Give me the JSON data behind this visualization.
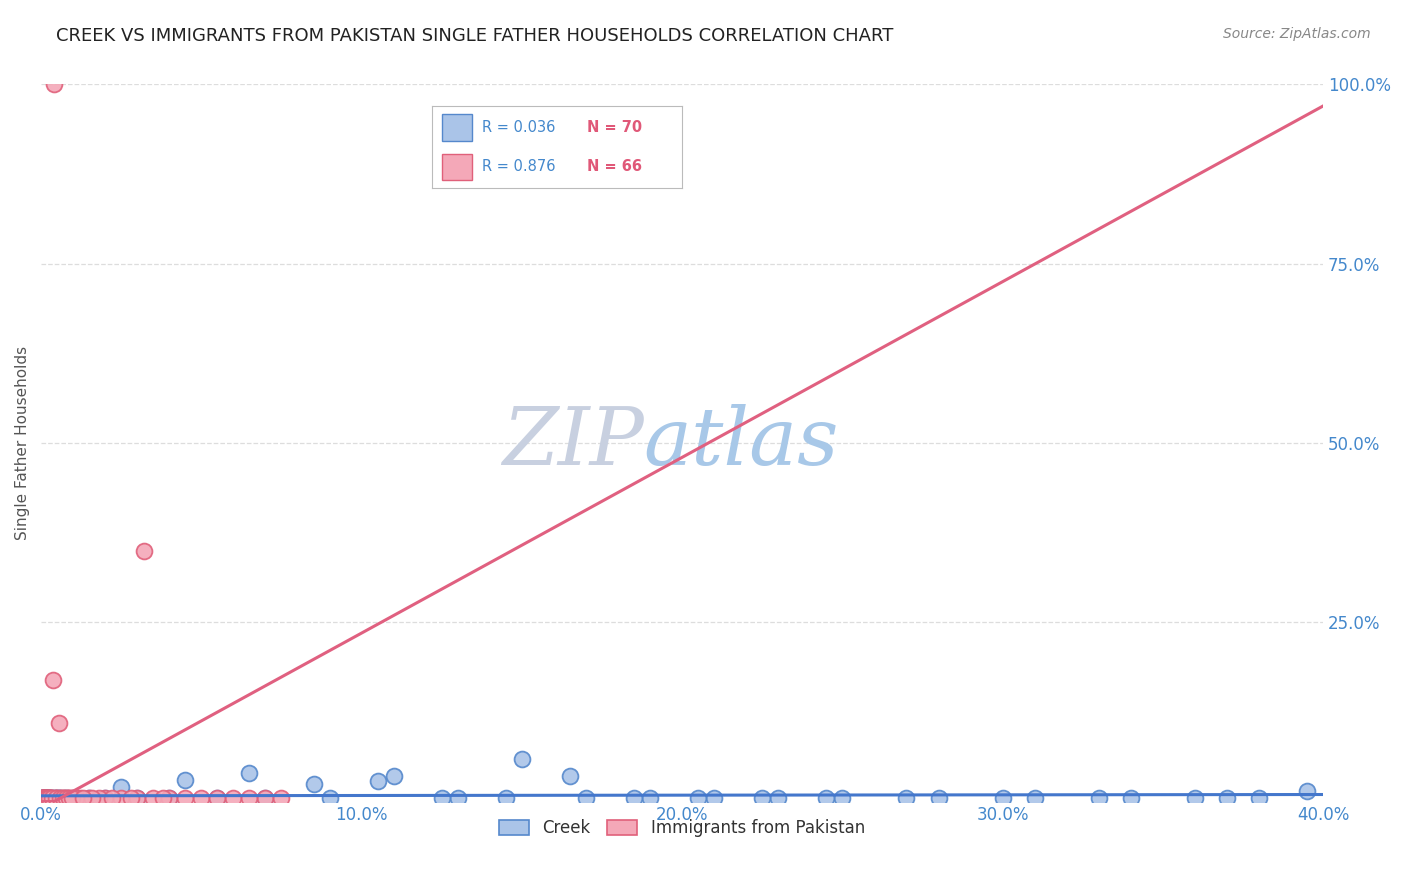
{
  "title": "CREEK VS IMMIGRANTS FROM PAKISTAN SINGLE FATHER HOUSEHOLDS CORRELATION CHART",
  "source": "Source: ZipAtlas.com",
  "ylabel": "Single Father Households",
  "xlabel_vals": [
    0.0,
    10.0,
    20.0,
    30.0,
    40.0
  ],
  "ylabel_right_vals": [
    25.0,
    50.0,
    75.0,
    100.0
  ],
  "creek_R": 0.036,
  "creek_N": 70,
  "pakistan_R": 0.876,
  "pakistan_N": 66,
  "creek_color": "#aac4e8",
  "creek_edge_color": "#5588cc",
  "pakistan_color": "#f4a8b8",
  "pakistan_edge_color": "#e0607a",
  "creek_line_color": "#4477cc",
  "pakistan_line_color": "#e06080",
  "background_color": "#ffffff",
  "grid_color": "#dddddd",
  "right_axis_color": "#4488cc",
  "title_fontsize": 13,
  "source_fontsize": 10,
  "creek_x": [
    0.02,
    0.03,
    0.04,
    0.05,
    0.06,
    0.07,
    0.08,
    0.09,
    0.1,
    0.11,
    0.12,
    0.13,
    0.14,
    0.15,
    0.16,
    0.17,
    0.18,
    0.19,
    0.2,
    0.22,
    0.24,
    0.26,
    0.28,
    0.3,
    0.35,
    0.4,
    0.5,
    0.6,
    0.7,
    0.8,
    1.0,
    1.5,
    2.0,
    3.0,
    4.0,
    5.5,
    7.0,
    9.0,
    11.0,
    13.0,
    15.0,
    17.0,
    19.0,
    21.0,
    23.0,
    25.0,
    27.0,
    30.0,
    33.0,
    36.0,
    38.0,
    39.5,
    2.5,
    4.5,
    6.5,
    8.5,
    10.5,
    12.5,
    14.5,
    16.5,
    18.5,
    20.5,
    22.5,
    24.5,
    28.0,
    31.0,
    34.0,
    37.0,
    0.45,
    0.55
  ],
  "creek_y": [
    0.5,
    0.5,
    0.5,
    0.5,
    0.5,
    0.5,
    0.5,
    0.5,
    0.5,
    0.5,
    0.5,
    0.5,
    0.5,
    0.5,
    0.5,
    0.5,
    0.5,
    0.5,
    0.5,
    0.5,
    0.5,
    0.5,
    0.5,
    0.5,
    0.5,
    0.5,
    0.5,
    0.5,
    0.5,
    0.5,
    0.5,
    0.5,
    0.5,
    0.5,
    0.5,
    0.5,
    0.5,
    0.5,
    3.5,
    0.5,
    6.0,
    0.5,
    0.5,
    0.5,
    0.5,
    0.5,
    0.5,
    0.5,
    0.5,
    0.5,
    0.5,
    1.5,
    2.0,
    3.0,
    4.0,
    2.5,
    2.8,
    0.5,
    0.5,
    3.5,
    0.5,
    0.5,
    0.5,
    0.5,
    0.5,
    0.5,
    0.5,
    0.5,
    0.5,
    0.5
  ],
  "pakistan_x": [
    0.02,
    0.03,
    0.04,
    0.05,
    0.06,
    0.07,
    0.08,
    0.09,
    0.1,
    0.12,
    0.14,
    0.16,
    0.18,
    0.2,
    0.25,
    0.3,
    0.35,
    0.4,
    0.5,
    0.6,
    0.7,
    0.8,
    0.9,
    1.0,
    1.2,
    1.5,
    2.0,
    2.5,
    3.0,
    3.5,
    4.0,
    5.0,
    6.0,
    7.0,
    3.2,
    0.38,
    0.55,
    0.45,
    1.8,
    2.2,
    4.5,
    6.5,
    0.28,
    0.32,
    0.22,
    0.15,
    0.62,
    0.72,
    0.85,
    1.1,
    1.6,
    2.8,
    3.8,
    5.5,
    7.5,
    0.42,
    0.18,
    0.25,
    0.35,
    0.48,
    0.58,
    0.68,
    0.78,
    0.88,
    0.95,
    1.3
  ],
  "pakistan_y": [
    0.5,
    0.5,
    0.5,
    0.5,
    0.5,
    0.5,
    0.5,
    0.5,
    0.5,
    0.5,
    0.5,
    0.5,
    0.5,
    0.5,
    0.5,
    0.5,
    0.5,
    100.0,
    0.5,
    0.5,
    0.5,
    0.5,
    0.5,
    0.5,
    0.5,
    0.5,
    0.5,
    0.5,
    0.5,
    0.5,
    0.5,
    0.5,
    0.5,
    0.5,
    35.0,
    17.0,
    11.0,
    0.5,
    0.5,
    0.5,
    0.5,
    0.5,
    0.5,
    0.5,
    0.5,
    0.5,
    0.5,
    0.5,
    0.5,
    0.5,
    0.5,
    0.5,
    0.5,
    0.5,
    0.5,
    0.5,
    0.5,
    0.5,
    0.5,
    0.5,
    0.5,
    0.5,
    0.5,
    0.5,
    0.5,
    0.5
  ],
  "xmin": 0.0,
  "xmax": 40.0,
  "ymin": 0.0,
  "ymax": 100.0,
  "watermark_zip": "ZIP",
  "watermark_atlas": "atlas",
  "watermark_zip_color": "#c8d0e0",
  "watermark_atlas_color": "#a8c8e8"
}
